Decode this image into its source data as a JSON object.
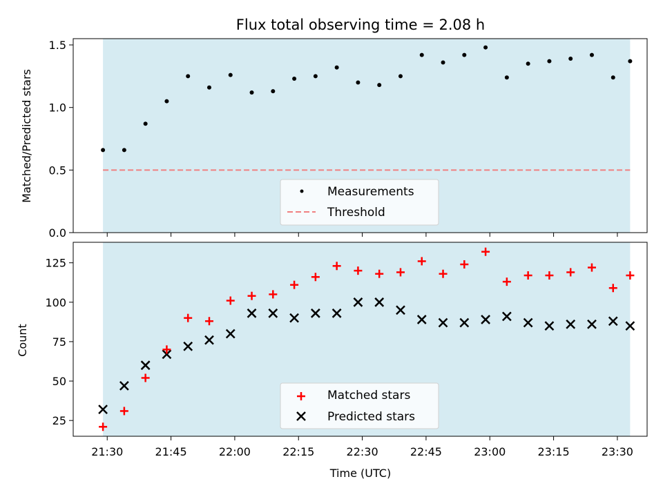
{
  "chart_data": [
    {
      "type": "scatter",
      "title": "Flux total observing time = 2.08 h",
      "ylabel": "Matched/Predicted stars",
      "ylim": [
        0,
        1.55
      ],
      "yticks": [
        "0.0",
        "0.5",
        "1.0",
        "1.5"
      ],
      "shaded_span": [
        "21:29",
        "23:33"
      ],
      "shade_color": "#add8e6",
      "series": [
        {
          "name": "Measurements",
          "marker": "dot",
          "color": "#000000",
          "points": [
            [
              "21:29",
              0.66
            ],
            [
              "21:34",
              0.66
            ],
            [
              "21:39",
              0.87
            ],
            [
              "21:44",
              1.05
            ],
            [
              "21:49",
              1.25
            ],
            [
              "21:54",
              1.16
            ],
            [
              "21:59",
              1.26
            ],
            [
              "22:04",
              1.12
            ],
            [
              "22:09",
              1.13
            ],
            [
              "22:14",
              1.23
            ],
            [
              "22:19",
              1.25
            ],
            [
              "22:24",
              1.32
            ],
            [
              "22:29",
              1.2
            ],
            [
              "22:34",
              1.18
            ],
            [
              "22:39",
              1.25
            ],
            [
              "22:44",
              1.42
            ],
            [
              "22:49",
              1.36
            ],
            [
              "22:54",
              1.42
            ],
            [
              "22:59",
              1.48
            ],
            [
              "23:04",
              1.24
            ],
            [
              "23:09",
              1.35
            ],
            [
              "23:14",
              1.37
            ],
            [
              "23:19",
              1.39
            ],
            [
              "23:24",
              1.42
            ],
            [
              "23:29",
              1.24
            ],
            [
              "23:33",
              1.37
            ]
          ]
        },
        {
          "name": "Threshold",
          "marker": "dashed-line",
          "color": "#f08080",
          "value": 0.5
        }
      ],
      "legend_position": "lower center"
    },
    {
      "type": "scatter",
      "xlabel": "Time (UTC)",
      "ylabel": "Count",
      "ylim": [
        15,
        138
      ],
      "yticks": [
        "25",
        "50",
        "75",
        "100",
        "125"
      ],
      "xticks": [
        "21:30",
        "21:45",
        "22:00",
        "22:15",
        "22:30",
        "22:45",
        "23:00",
        "23:15",
        "23:30"
      ],
      "xlim": [
        "21:22",
        "23:37"
      ],
      "shaded_span": [
        "21:29",
        "23:33"
      ],
      "shade_color": "#add8e6",
      "series": [
        {
          "name": "Matched stars",
          "marker": "plus",
          "color": "#ff0000",
          "points": [
            [
              "21:29",
              21
            ],
            [
              "21:34",
              31
            ],
            [
              "21:39",
              52
            ],
            [
              "21:44",
              70
            ],
            [
              "21:49",
              90
            ],
            [
              "21:54",
              88
            ],
            [
              "21:59",
              101
            ],
            [
              "22:04",
              104
            ],
            [
              "22:09",
              105
            ],
            [
              "22:14",
              111
            ],
            [
              "22:19",
              116
            ],
            [
              "22:24",
              123
            ],
            [
              "22:29",
              120
            ],
            [
              "22:34",
              118
            ],
            [
              "22:39",
              119
            ],
            [
              "22:44",
              126
            ],
            [
              "22:49",
              118
            ],
            [
              "22:54",
              124
            ],
            [
              "22:59",
              132
            ],
            [
              "23:04",
              113
            ],
            [
              "23:09",
              117
            ],
            [
              "23:14",
              117
            ],
            [
              "23:19",
              119
            ],
            [
              "23:24",
              122
            ],
            [
              "23:29",
              109
            ],
            [
              "23:33",
              117
            ]
          ]
        },
        {
          "name": "Predicted stars",
          "marker": "x",
          "color": "#000000",
          "points": [
            [
              "21:29",
              32
            ],
            [
              "21:34",
              47
            ],
            [
              "21:39",
              60
            ],
            [
              "21:44",
              67
            ],
            [
              "21:49",
              72
            ],
            [
              "21:54",
              76
            ],
            [
              "21:59",
              80
            ],
            [
              "22:04",
              93
            ],
            [
              "22:09",
              93
            ],
            [
              "22:14",
              90
            ],
            [
              "22:19",
              93
            ],
            [
              "22:24",
              93
            ],
            [
              "22:29",
              100
            ],
            [
              "22:34",
              100
            ],
            [
              "22:39",
              95
            ],
            [
              "22:44",
              89
            ],
            [
              "22:49",
              87
            ],
            [
              "22:54",
              87
            ],
            [
              "22:59",
              89
            ],
            [
              "23:04",
              91
            ],
            [
              "23:09",
              87
            ],
            [
              "23:14",
              85
            ],
            [
              "23:19",
              86
            ],
            [
              "23:24",
              86
            ],
            [
              "23:29",
              88
            ],
            [
              "23:33",
              85
            ]
          ]
        }
      ],
      "legend_position": "lower center"
    }
  ]
}
